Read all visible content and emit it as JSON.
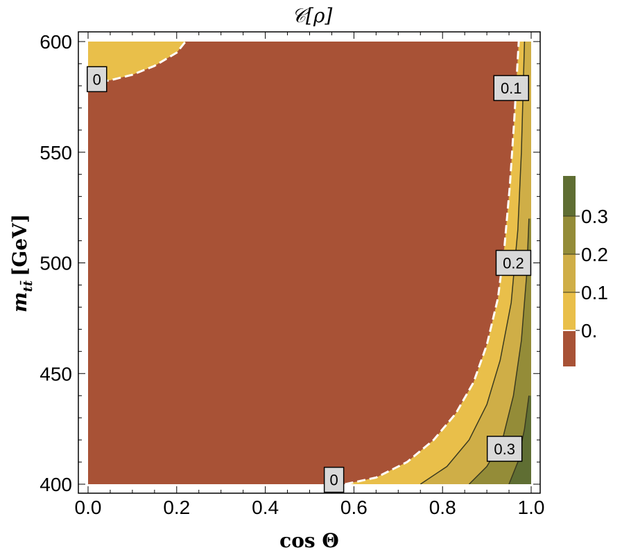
{
  "chart_data": {
    "type": "contour",
    "title": "𝒞[ρ]",
    "xlabel": "cos Θ",
    "ylabel_main": "m",
    "ylabel_sub": "tt̄",
    "ylabel_unit": "[GeV]",
    "xlim": [
      0.0,
      1.0
    ],
    "ylim": [
      400,
      600
    ],
    "x_ticks": [
      "0.0",
      "0.2",
      "0.4",
      "0.6",
      "0.8",
      "1.0"
    ],
    "y_ticks": [
      "400",
      "450",
      "500",
      "550",
      "600"
    ],
    "x_tick_values": [
      0.0,
      0.2,
      0.4,
      0.6,
      0.8,
      1.0
    ],
    "y_tick_values": [
      400,
      450,
      500,
      550,
      600
    ],
    "levels": [
      {
        "name": "below 0",
        "color": "#a85236"
      },
      {
        "name": "0 – 0.1",
        "color": "#e9bf4a"
      },
      {
        "name": "0.1 – 0.2",
        "color": "#cfae47"
      },
      {
        "name": "0.2 – 0.3",
        "color": "#948c38"
      },
      {
        "name": "above 0.3",
        "color": "#5f6e33"
      }
    ],
    "contours": {
      "zero_bottom": [
        [
          0.58,
          400
        ],
        [
          0.65,
          403
        ],
        [
          0.72,
          410
        ],
        [
          0.78,
          420
        ],
        [
          0.83,
          432
        ],
        [
          0.87,
          446
        ],
        [
          0.9,
          463
        ],
        [
          0.925,
          484
        ],
        [
          0.94,
          508
        ],
        [
          0.952,
          535
        ],
        [
          0.962,
          565
        ],
        [
          0.972,
          600
        ]
      ],
      "zero_top": [
        [
          0.0,
          581
        ],
        [
          0.05,
          582.5
        ],
        [
          0.1,
          585
        ],
        [
          0.15,
          589
        ],
        [
          0.2,
          595
        ],
        [
          0.22,
          600
        ]
      ],
      "c01": [
        [
          0.75,
          400
        ],
        [
          0.81,
          408
        ],
        [
          0.86,
          420
        ],
        [
          0.9,
          436
        ],
        [
          0.93,
          456
        ],
        [
          0.955,
          482
        ],
        [
          0.97,
          515
        ],
        [
          0.978,
          550
        ],
        [
          0.985,
          600
        ]
      ],
      "c02": [
        [
          0.86,
          400
        ],
        [
          0.9,
          408
        ],
        [
          0.935,
          420
        ],
        [
          0.96,
          440
        ],
        [
          0.978,
          465
        ],
        [
          0.99,
          495
        ],
        [
          0.995,
          520
        ]
      ],
      "c03": [
        [
          0.95,
          400
        ],
        [
          0.97,
          410
        ],
        [
          0.985,
          425
        ],
        [
          0.995,
          440
        ]
      ]
    },
    "contour_labels": [
      {
        "text": "0",
        "x": 0.02,
        "y": 583
      },
      {
        "text": "0.1",
        "x": 0.955,
        "y": 579
      },
      {
        "text": "0.2",
        "x": 0.96,
        "y": 500
      },
      {
        "text": "0.3",
        "x": 0.94,
        "y": 416
      },
      {
        "text": "0",
        "x": 0.555,
        "y": 402
      }
    ],
    "legend": {
      "position": "right",
      "ticks": [
        "0.3",
        "0.2",
        "0.1",
        "0."
      ]
    }
  }
}
